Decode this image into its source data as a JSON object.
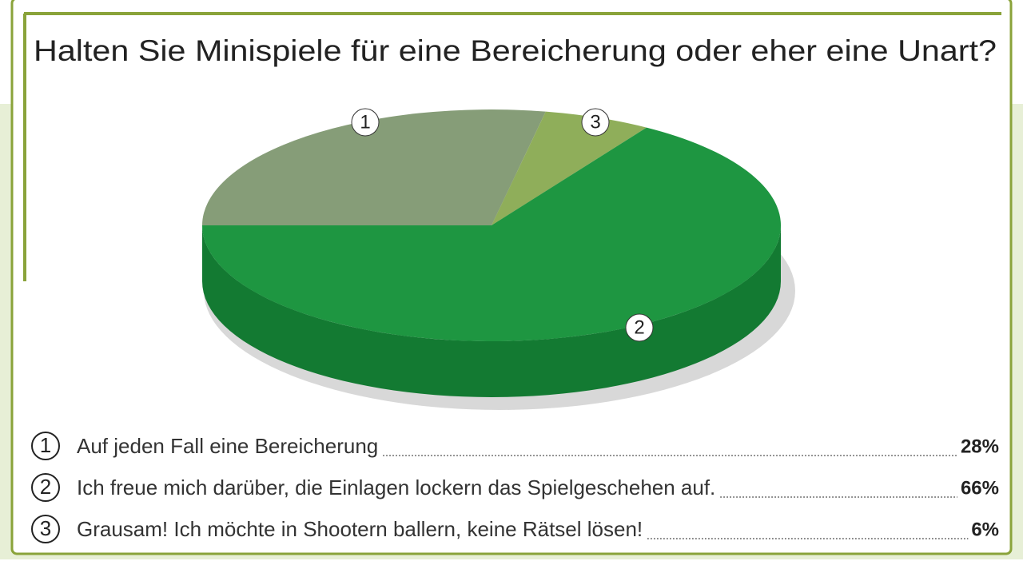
{
  "chart_data": {
    "type": "pie",
    "title": "Halten Sie Minispiele für eine Bereicherung oder eher eine Unart?",
    "markers": [
      "1",
      "2",
      "3"
    ],
    "categories": [
      "Auf jeden Fall eine Bereicherung",
      "Ich freue mich darüber, die Einlagen lockern das Spielgeschehen auf.",
      "Grausam! Ich möchte in Shootern ballern, keine Rätsel lösen!"
    ],
    "values": [
      28,
      66,
      6
    ],
    "value_labels": [
      "28%",
      "66%",
      "6%"
    ],
    "colors": [
      "#869d78",
      "#1e9641",
      "#8fae5a"
    ],
    "side_colors": [
      "#6b8060",
      "#137a32",
      "#70903e"
    ]
  }
}
